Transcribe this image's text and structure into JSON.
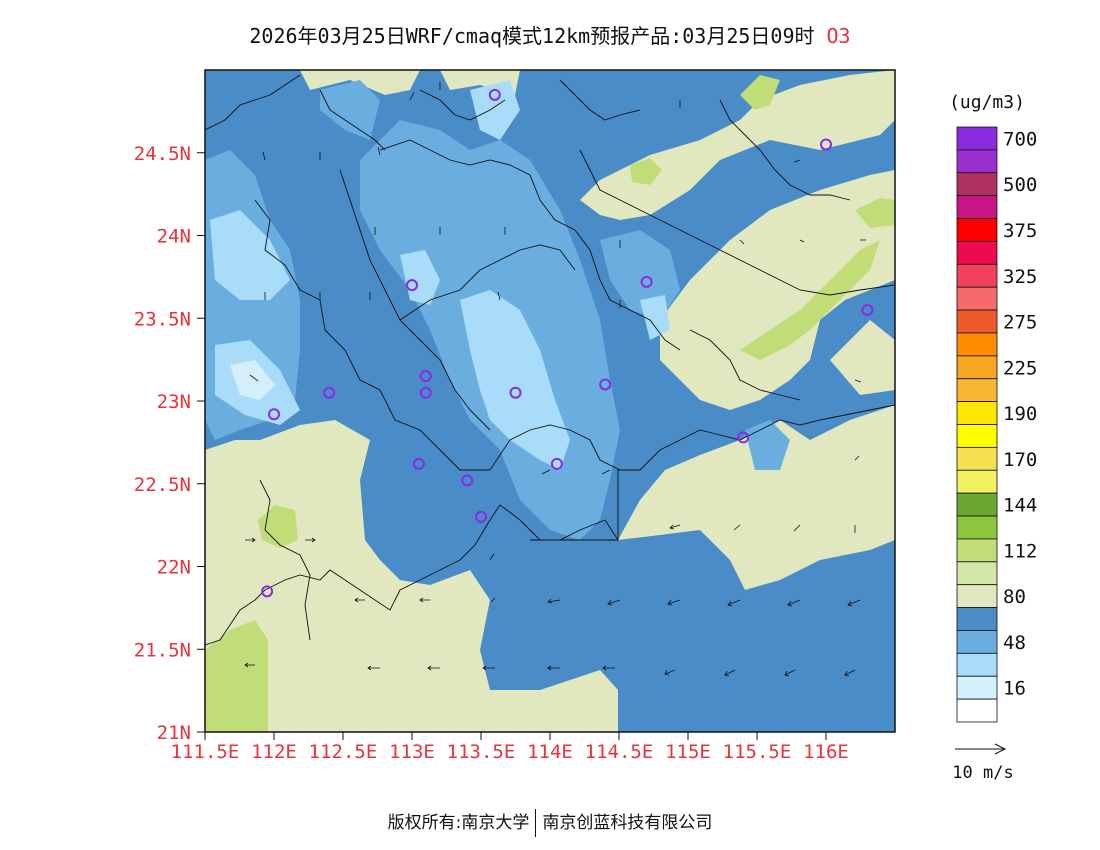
{
  "title": {
    "text": "2026年03月25日WRF/cmaq模式12km预报产品:03月25日09时",
    "pollutant": "O3"
  },
  "axes": {
    "lat_range": [
      21.0,
      25.0
    ],
    "lon_range": [
      111.5,
      116.5
    ],
    "lat_ticks": [
      {
        "value": 21.0,
        "label": "21N"
      },
      {
        "value": 21.5,
        "label": "21.5N"
      },
      {
        "value": 22.0,
        "label": "22N"
      },
      {
        "value": 22.5,
        "label": "22.5N"
      },
      {
        "value": 23.0,
        "label": "23N"
      },
      {
        "value": 23.5,
        "label": "23.5N"
      },
      {
        "value": 24.0,
        "label": "24N"
      },
      {
        "value": 24.5,
        "label": "24.5N"
      }
    ],
    "lon_ticks": [
      {
        "value": 111.5,
        "label": "111.5E"
      },
      {
        "value": 112.0,
        "label": "112E"
      },
      {
        "value": 112.5,
        "label": "112.5E"
      },
      {
        "value": 113.0,
        "label": "113E"
      },
      {
        "value": 113.5,
        "label": "113.5E"
      },
      {
        "value": 114.0,
        "label": "114E"
      },
      {
        "value": 114.5,
        "label": "114.5E"
      },
      {
        "value": 115.0,
        "label": "115E"
      },
      {
        "value": 115.5,
        "label": "115.5E"
      },
      {
        "value": 116.0,
        "label": "116E"
      }
    ],
    "tick_label_color": "#e8333a"
  },
  "legend": {
    "unit": "(ug/m3)",
    "bins": [
      {
        "color": "#8b2be2",
        "label": "700"
      },
      {
        "color": "#9b30d0",
        "label": null
      },
      {
        "color": "#b03060",
        "label": "500"
      },
      {
        "color": "#c71585",
        "label": null
      },
      {
        "color": "#ff0000",
        "label": "375"
      },
      {
        "color": "#ee0a50",
        "label": null
      },
      {
        "color": "#f0405a",
        "label": "325"
      },
      {
        "color": "#f56b6b",
        "label": null
      },
      {
        "color": "#f05a2a",
        "label": "275"
      },
      {
        "color": "#ff8c00",
        "label": null
      },
      {
        "color": "#f5a623",
        "label": "225"
      },
      {
        "color": "#f7b733",
        "label": null
      },
      {
        "color": "#ffe600",
        "label": "190"
      },
      {
        "color": "#ffff00",
        "label": null
      },
      {
        "color": "#f5e050",
        "label": "170"
      },
      {
        "color": "#f0f060",
        "label": null
      },
      {
        "color": "#6aa832",
        "label": "144"
      },
      {
        "color": "#8cc63f",
        "label": null
      },
      {
        "color": "#c0dd78",
        "label": "112"
      },
      {
        "color": "#d4e6a8",
        "label": null
      },
      {
        "color": "#e1e8c0",
        "label": "80"
      },
      {
        "color": "#4a8cc8",
        "label": null
      },
      {
        "color": "#6aaee0",
        "label": "48"
      },
      {
        "color": "#a8dcf8",
        "label": null
      },
      {
        "color": "#d6effc",
        "label": "16"
      },
      {
        "color": "#ffffff",
        "label": null
      }
    ]
  },
  "wind_scale": {
    "label": "10 m/s"
  },
  "stations": [
    {
      "lon": 113.6,
      "lat": 24.85
    },
    {
      "lon": 116.0,
      "lat": 24.55
    },
    {
      "lon": 113.0,
      "lat": 23.7
    },
    {
      "lon": 114.7,
      "lat": 23.72
    },
    {
      "lon": 116.3,
      "lat": 23.55
    },
    {
      "lon": 113.1,
      "lat": 23.15
    },
    {
      "lon": 112.4,
      "lat": 23.05
    },
    {
      "lon": 113.1,
      "lat": 23.05
    },
    {
      "lon": 113.75,
      "lat": 23.05
    },
    {
      "lon": 114.4,
      "lat": 23.1
    },
    {
      "lon": 112.0,
      "lat": 22.92
    },
    {
      "lon": 115.4,
      "lat": 22.78
    },
    {
      "lon": 113.05,
      "lat": 22.62
    },
    {
      "lon": 114.05,
      "lat": 22.62
    },
    {
      "lon": 113.4,
      "lat": 22.52
    },
    {
      "lon": 113.5,
      "lat": 22.3
    },
    {
      "lon": 111.95,
      "lat": 21.85
    }
  ],
  "footer": {
    "left": "版权所有:南京大学",
    "right": "南京创蓝科技有限公司"
  }
}
